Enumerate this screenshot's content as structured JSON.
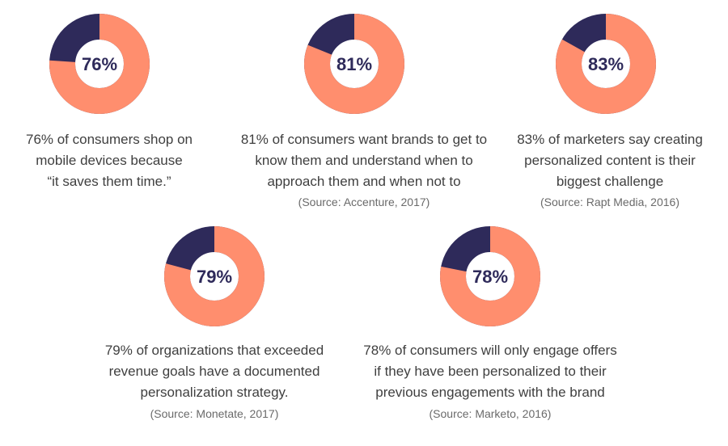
{
  "chart_data": [
    {
      "type": "pie",
      "value_percent": 76,
      "label": "76%",
      "description_lines": [
        "76% of consumers shop on",
        "mobile devices because",
        "“it saves them time.”"
      ],
      "source": ""
    },
    {
      "type": "pie",
      "value_percent": 81,
      "label": "81%",
      "description_lines": [
        "81% of consumers want brands to get to",
        "know them and understand when to",
        "approach them and when not to"
      ],
      "source": "(Source: Accenture, 2017)"
    },
    {
      "type": "pie",
      "value_percent": 83,
      "label": "83%",
      "description_lines": [
        "83% of marketers say creating",
        "personalized content is their",
        "biggest challenge"
      ],
      "source": "(Source: Rapt Media, 2016)"
    },
    {
      "type": "pie",
      "value_percent": 79,
      "label": "79%",
      "description_lines": [
        "79% of organizations that exceeded",
        "revenue goals have a documented",
        "personalization strategy."
      ],
      "source": "(Source: Monetate, 2017)"
    },
    {
      "type": "pie",
      "value_percent": 78,
      "label": "78%",
      "description_lines": [
        "78% of consumers will only engage offers",
        "if they have been personalized to their",
        "previous engagements with the brand"
      ],
      "source": "(Source: Marketo, 2016)"
    }
  ],
  "colors": {
    "value_arc": "#ff8e6e",
    "remainder_arc": "#2e2a5a",
    "label_text": "#2e2a5a"
  }
}
